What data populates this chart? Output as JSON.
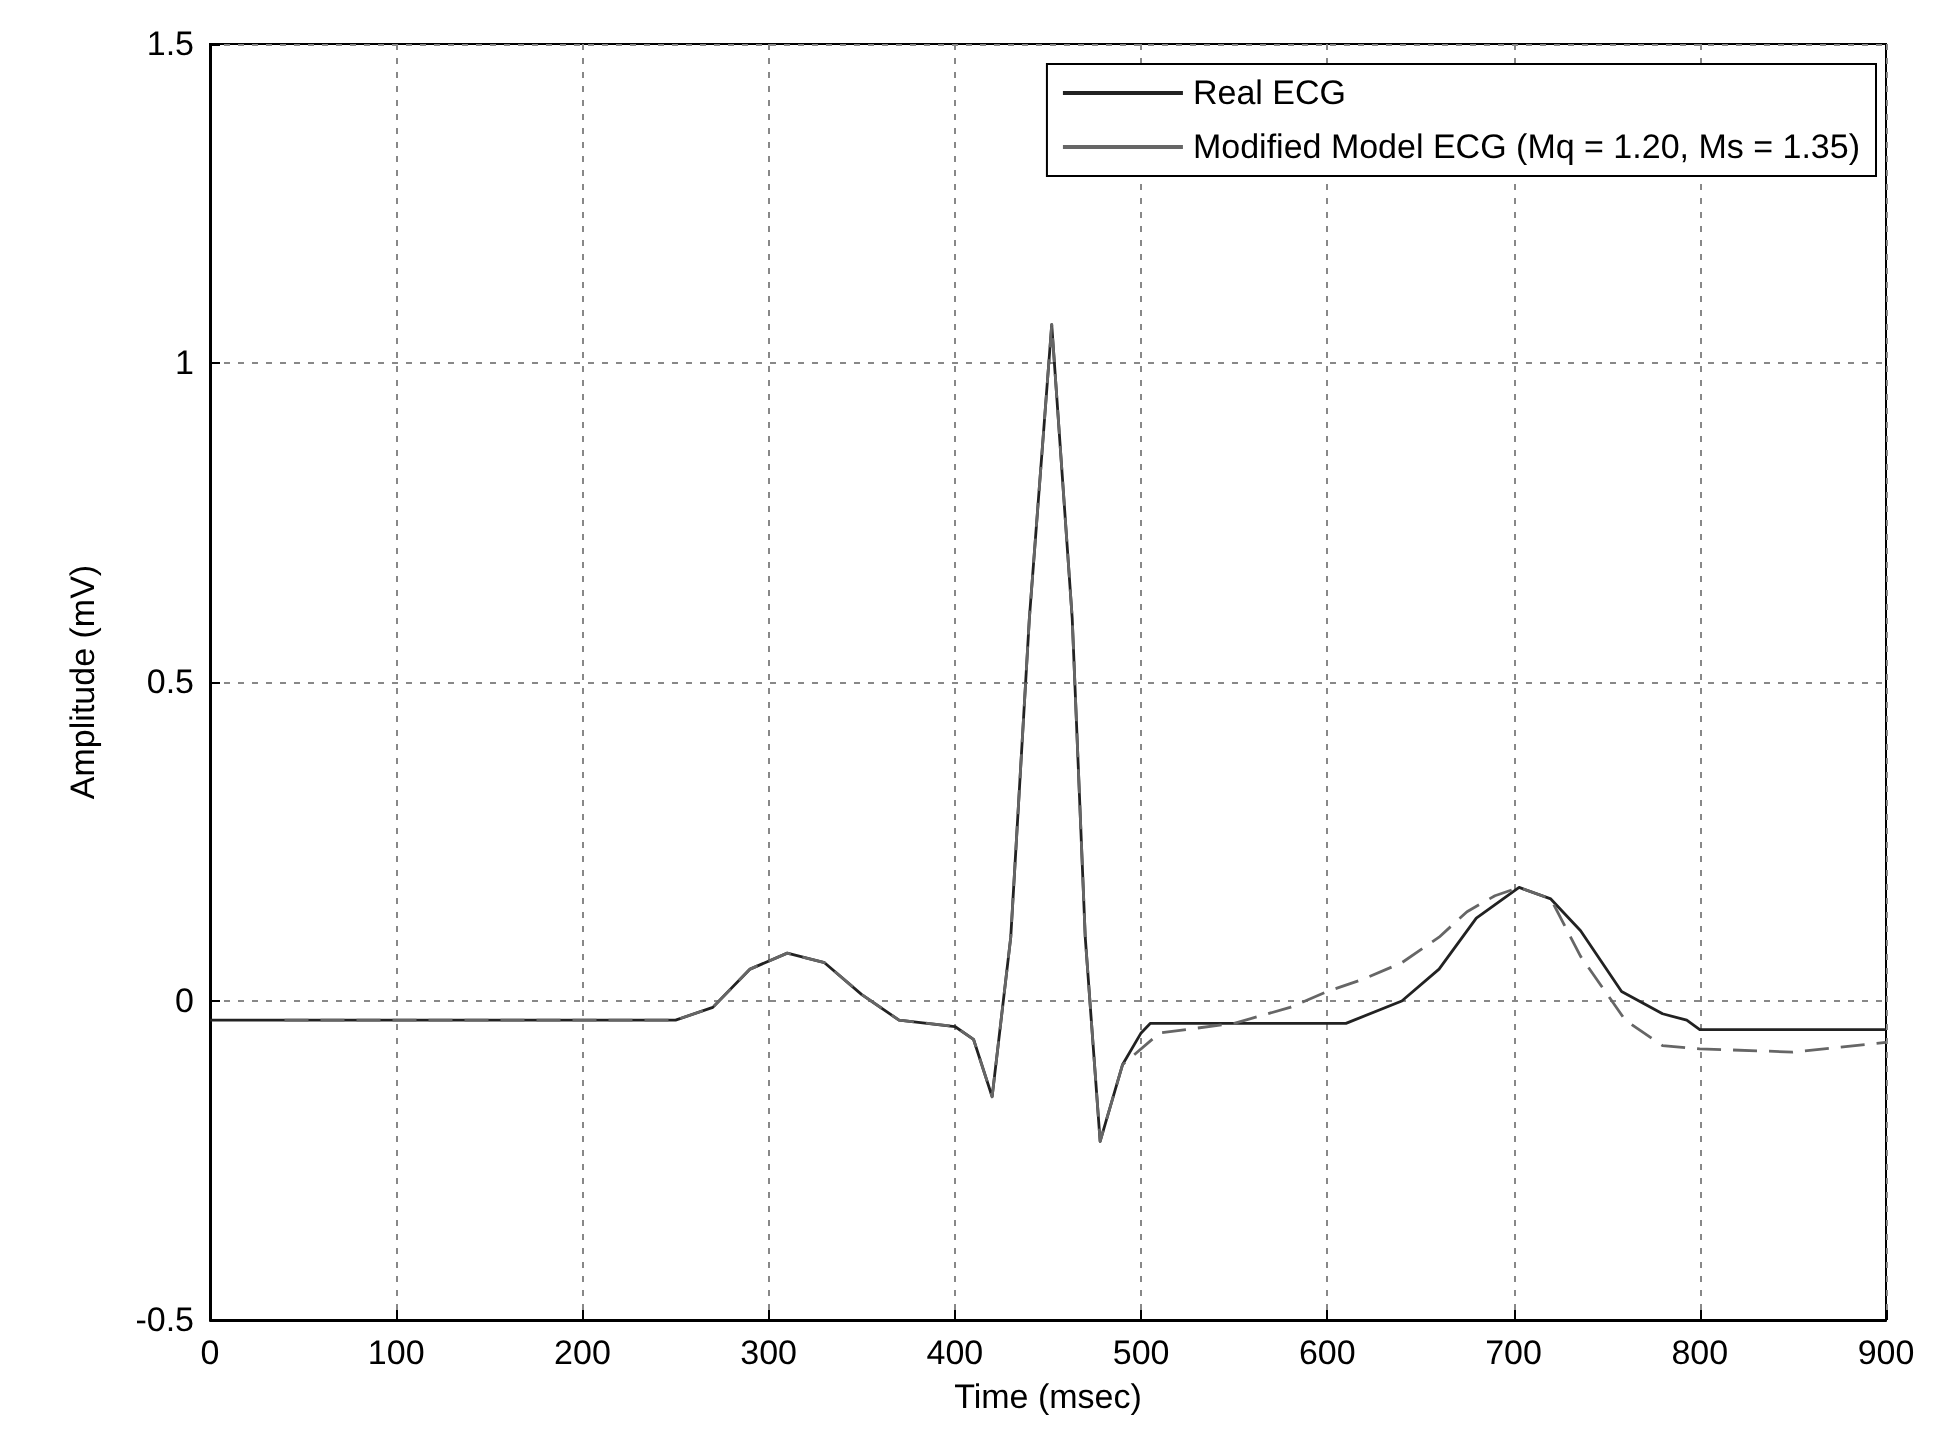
{
  "chart_data": {
    "type": "line",
    "xlabel": "Time (msec)",
    "ylabel": "Amplitude (mV)",
    "xlim": [
      0,
      900
    ],
    "xticks": [
      0,
      100,
      200,
      300,
      400,
      500,
      600,
      700,
      800,
      900
    ],
    "ylim": [
      -0.5,
      1.5
    ],
    "yticks": [
      -0.5,
      0,
      0.5,
      1,
      1.5
    ],
    "grid": true,
    "legend": "top right",
    "marker": "none",
    "series": [
      {
        "name": "Real ECG",
        "color": "#222222",
        "line_style": "solid",
        "x": [
          0,
          250,
          270,
          290,
          310,
          330,
          350,
          370,
          400,
          410,
          420,
          430,
          440,
          452,
          463,
          470,
          478,
          490,
          500,
          505,
          610,
          640,
          660,
          680,
          703,
          720,
          736,
          758,
          780,
          793,
          800,
          900
        ],
        "values": [
          -0.03,
          -0.03,
          -0.01,
          0.05,
          0.075,
          0.06,
          0.01,
          -0.03,
          -0.04,
          -0.06,
          -0.15,
          0.1,
          0.6,
          1.06,
          0.6,
          0.1,
          -0.22,
          -0.1,
          -0.05,
          -0.035,
          -0.035,
          0.0,
          0.05,
          0.13,
          0.178,
          0.16,
          0.11,
          0.015,
          -0.02,
          -0.03,
          -0.045,
          -0.045
        ]
      },
      {
        "name": "Modified Model ECG (Mq = 1.20, Ms = 1.35)",
        "color": "#666666",
        "line_style": "dashed",
        "x": [
          40,
          250,
          270,
          290,
          310,
          330,
          350,
          370,
          400,
          410,
          420,
          430,
          440,
          452,
          463,
          470,
          478,
          490,
          510,
          550,
          580,
          600,
          620,
          640,
          660,
          675,
          690,
          703,
          720,
          736,
          760,
          780,
          800,
          850,
          900
        ],
        "values": [
          -0.03,
          -0.03,
          -0.01,
          0.05,
          0.075,
          0.06,
          0.01,
          -0.03,
          -0.04,
          -0.06,
          -0.15,
          0.1,
          0.6,
          1.06,
          0.6,
          0.1,
          -0.22,
          -0.1,
          -0.05,
          -0.035,
          -0.01,
          0.015,
          0.035,
          0.06,
          0.1,
          0.14,
          0.165,
          0.178,
          0.16,
          0.07,
          -0.03,
          -0.07,
          -0.075,
          -0.08,
          -0.065
        ]
      }
    ]
  }
}
